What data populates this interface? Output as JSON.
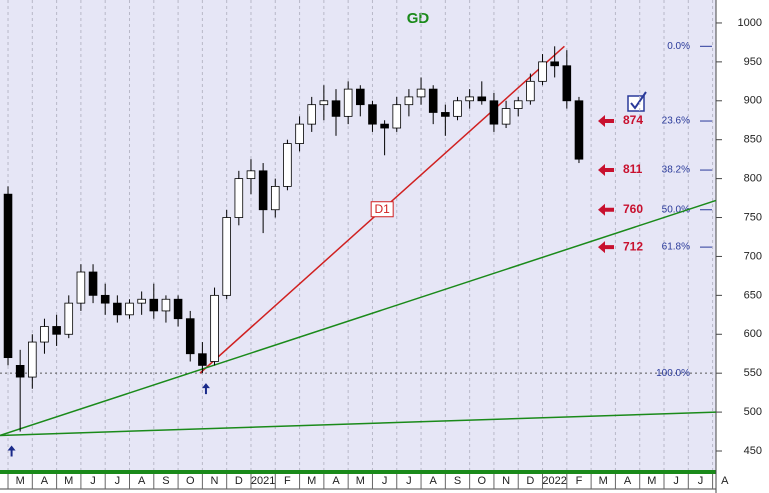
{
  "chart_data": {
    "type": "candlestick",
    "title": "GD",
    "title_color": "#1a8a1a",
    "xlim": [
      -0.33,
      29.14
    ],
    "ylim": [
      425.6,
      1029.5
    ],
    "yticks": [
      450,
      500,
      550,
      600,
      650,
      700,
      750,
      800,
      850,
      900,
      950,
      1000
    ],
    "xticks": [
      {
        "value": 0,
        "label": "M"
      },
      {
        "value": 1,
        "label": "A"
      },
      {
        "value": 2,
        "label": "M"
      },
      {
        "value": 3,
        "label": "J"
      },
      {
        "value": 4,
        "label": "J"
      },
      {
        "value": 5,
        "label": "A"
      },
      {
        "value": 6,
        "label": "S"
      },
      {
        "value": 7,
        "label": "O"
      },
      {
        "value": 8,
        "label": "N"
      },
      {
        "value": 9,
        "label": "D"
      },
      {
        "value": 10,
        "label": "2021"
      },
      {
        "value": 11,
        "label": "F"
      },
      {
        "value": 12,
        "label": "M"
      },
      {
        "value": 13,
        "label": "A"
      },
      {
        "value": 14,
        "label": "M"
      },
      {
        "value": 15,
        "label": "J"
      },
      {
        "value": 16,
        "label": "J"
      },
      {
        "value": 17,
        "label": "A"
      },
      {
        "value": 18,
        "label": "S"
      },
      {
        "value": 19,
        "label": "O"
      },
      {
        "value": 20,
        "label": "N"
      },
      {
        "value": 21,
        "label": "D"
      },
      {
        "value": 22,
        "label": "2022"
      },
      {
        "value": 23,
        "label": "F"
      },
      {
        "value": 24,
        "label": "M"
      },
      {
        "value": 25,
        "label": "A"
      },
      {
        "value": 26,
        "label": "M"
      },
      {
        "value": 27,
        "label": "J"
      },
      {
        "value": 28,
        "label": "J"
      },
      {
        "value": 29,
        "label": "A"
      }
    ],
    "grid": true,
    "x": [
      0.0,
      0.5,
      1.0,
      1.5,
      2.0,
      2.5,
      3.0,
      3.5,
      4.0,
      4.5,
      5.0,
      5.5,
      6.0,
      6.5,
      7.0,
      7.5,
      8.0,
      8.5,
      9.0,
      9.5,
      10.0,
      10.5,
      11.0,
      11.5,
      12.0,
      12.5,
      13.0,
      13.5,
      14.0,
      14.5,
      15.0,
      15.5,
      16.0,
      16.5,
      17.0,
      17.5,
      18.0,
      18.5,
      19.0,
      19.5,
      20.0,
      20.5,
      21.0,
      21.5,
      22.0,
      22.5,
      23.0,
      23.5
    ],
    "open": [
      780,
      560,
      545,
      590,
      610,
      600,
      640,
      680,
      650,
      640,
      625,
      640,
      645,
      630,
      645,
      620,
      575,
      565,
      650,
      750,
      800,
      810,
      760,
      790,
      845,
      870,
      895,
      900,
      880,
      915,
      895,
      870,
      865,
      895,
      905,
      915,
      885,
      880,
      900,
      905,
      900,
      870,
      890,
      900,
      925,
      950,
      945,
      900
    ],
    "high": [
      790,
      580,
      600,
      620,
      625,
      650,
      690,
      690,
      665,
      650,
      645,
      655,
      665,
      650,
      650,
      630,
      590,
      660,
      760,
      810,
      825,
      820,
      800,
      850,
      880,
      905,
      920,
      915,
      925,
      920,
      900,
      875,
      905,
      915,
      930,
      920,
      895,
      905,
      915,
      925,
      910,
      900,
      905,
      935,
      960,
      970,
      965,
      905
    ],
    "low": [
      560,
      475,
      530,
      575,
      585,
      595,
      630,
      640,
      625,
      615,
      620,
      625,
      620,
      615,
      610,
      565,
      550,
      560,
      645,
      740,
      780,
      730,
      750,
      785,
      835,
      860,
      875,
      855,
      870,
      880,
      860,
      830,
      860,
      880,
      895,
      870,
      855,
      875,
      890,
      895,
      860,
      865,
      880,
      895,
      920,
      930,
      890,
      820
    ],
    "close": [
      570,
      545,
      590,
      610,
      600,
      640,
      680,
      650,
      640,
      625,
      640,
      645,
      630,
      645,
      620,
      575,
      560,
      650,
      750,
      800,
      810,
      760,
      790,
      845,
      870,
      895,
      900,
      880,
      915,
      895,
      870,
      865,
      895,
      905,
      915,
      885,
      880,
      900,
      905,
      900,
      870,
      890,
      900,
      925,
      950,
      945,
      900,
      825
    ],
    "up_color": "#ffffff",
    "down_color": "#000000",
    "fib_color": "#2a3a9a",
    "fib_levels": [
      {
        "value": 970,
        "label": "0.0%"
      },
      {
        "value": 874,
        "label": "23.6%"
      },
      {
        "value": 811,
        "label": "38.2%"
      },
      {
        "value": 760,
        "label": "50.0%"
      },
      {
        "value": 712,
        "label": "61.8%"
      },
      {
        "value": 550,
        "label": "100.0%"
      }
    ],
    "arrow_color": "#c8102e",
    "arrows": [
      874,
      811,
      760,
      712
    ],
    "trendlines": [
      {
        "name": "D1",
        "color": "#d02020",
        "x": [
          7.9,
          22.9
        ],
        "y": [
          550,
          970
        ]
      },
      {
        "color": "#1a8a1a",
        "x": [
          -0.33,
          29.14
        ],
        "y": [
          470,
          772
        ]
      },
      {
        "color": "#1a8a1a",
        "x": [
          -0.33,
          29.14
        ],
        "y": [
          470,
          500
        ]
      }
    ],
    "pivots": [
      {
        "x": -0.1,
        "y": 470
      },
      {
        "x": 7.9,
        "y": 550
      }
    ]
  }
}
